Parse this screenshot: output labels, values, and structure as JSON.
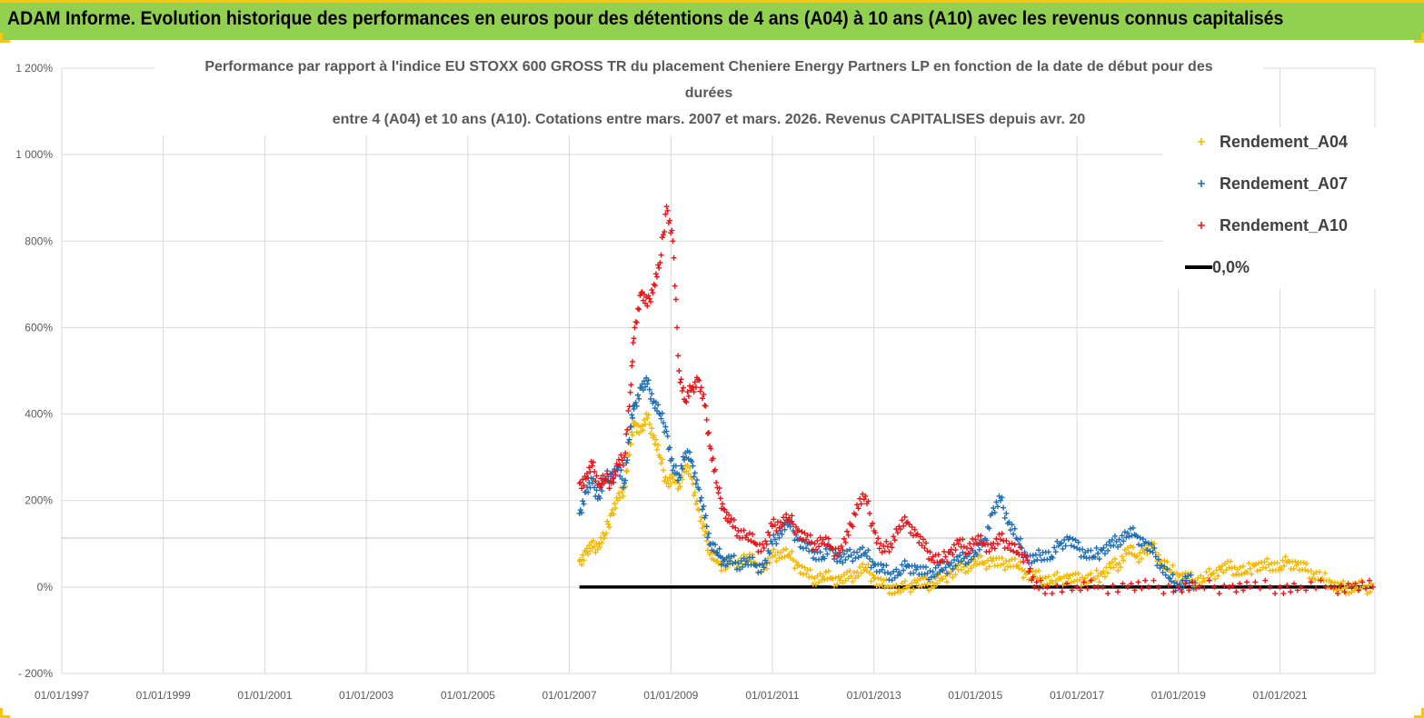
{
  "banner": {
    "title": "ADAM Informe. Evolution historique des performances en euros pour des détentions de 4 ans (A04) à 10 ans (A10) avec les revenus connus capitalisés"
  },
  "colors": {
    "banner_bg": "#92d050",
    "banner_border": "#f5c518",
    "A04": "#f5b800",
    "A07": "#1f6fb4",
    "A10": "#e8161b",
    "zero_line": "#000000",
    "grid": "#d9d9d9"
  },
  "chart_data": {
    "type": "scatter",
    "title_lines": [
      "Performance par rapport à l'indice EU STOXX 600 GROSS TR  du placement Cheniere Energy Partners LP en fonction de la date de début pour des",
      "durées",
      "entre 4 (A04) et 10 ans (A10).  Cotations entre mars. 2007 et mars. 2026. Revenus CAPITALISES depuis avr. 20"
    ],
    "x_tick_labels": [
      "01/01/1997",
      "01/01/1999",
      "01/01/2001",
      "01/01/2003",
      "01/01/2005",
      "01/01/2007",
      "01/01/2009",
      "01/01/2011",
      "01/01/2013",
      "01/01/2015",
      "01/01/2017",
      "01/01/2019",
      "01/01/2021"
    ],
    "xlim": [
      "1997-01-01",
      "2022-11-15"
    ],
    "y_tick_labels": [
      "- 200%",
      "0%",
      "200%",
      "400%",
      "600%",
      "800%",
      "1 000%",
      "1 200%"
    ],
    "ylim": [
      -200,
      1200
    ],
    "grid": true,
    "legend_position": "top-right",
    "legend": [
      "Rendement_A04",
      "Rendement_A07",
      "Rendement_A10",
      "0,0%"
    ],
    "series": [
      {
        "name": "Rendement_A04",
        "points": [
          [
            "2007-03-15",
            60
          ],
          [
            "2007-05-01",
            80
          ],
          [
            "2007-06-15",
            90
          ],
          [
            "2007-08-01",
            100
          ],
          [
            "2007-09-15",
            120
          ],
          [
            "2007-11-01",
            170
          ],
          [
            "2007-12-15",
            200
          ],
          [
            "2008-02-01",
            230
          ],
          [
            "2008-03-15",
            330
          ],
          [
            "2008-04-15",
            380
          ],
          [
            "2008-06-01",
            360
          ],
          [
            "2008-07-15",
            390
          ],
          [
            "2008-09-01",
            350
          ],
          [
            "2008-10-15",
            300
          ],
          [
            "2008-12-01",
            240
          ],
          [
            "2009-01-15",
            250
          ],
          [
            "2009-03-01",
            240
          ],
          [
            "2009-04-15",
            280
          ],
          [
            "2009-06-01",
            250
          ],
          [
            "2009-07-15",
            180
          ],
          [
            "2009-09-01",
            120
          ],
          [
            "2009-10-15",
            80
          ],
          [
            "2009-12-01",
            60
          ],
          [
            "2010-01-15",
            50
          ],
          [
            "2010-03-01",
            55
          ],
          [
            "2010-05-01",
            60
          ],
          [
            "2010-07-01",
            70
          ],
          [
            "2010-09-01",
            55
          ],
          [
            "2010-11-01",
            40
          ],
          [
            "2011-01-01",
            70
          ],
          [
            "2011-03-01",
            80
          ],
          [
            "2011-05-01",
            75
          ],
          [
            "2011-07-01",
            50
          ],
          [
            "2011-09-01",
            30
          ],
          [
            "2011-11-01",
            20
          ],
          [
            "2012-01-01",
            25
          ],
          [
            "2012-03-01",
            20
          ],
          [
            "2012-05-01",
            15
          ],
          [
            "2012-07-01",
            20
          ],
          [
            "2012-09-01",
            35
          ],
          [
            "2012-11-01",
            45
          ],
          [
            "2013-01-01",
            20
          ],
          [
            "2013-03-01",
            5
          ],
          [
            "2013-05-01",
            0
          ],
          [
            "2013-07-01",
            -5
          ],
          [
            "2013-09-01",
            0
          ],
          [
            "2013-11-01",
            10
          ],
          [
            "2014-01-01",
            5
          ],
          [
            "2014-03-01",
            10
          ],
          [
            "2014-05-01",
            20
          ],
          [
            "2014-07-01",
            30
          ],
          [
            "2014-09-01",
            40
          ],
          [
            "2014-11-01",
            50
          ],
          [
            "2015-01-01",
            60
          ],
          [
            "2015-03-01",
            55
          ],
          [
            "2015-05-01",
            60
          ],
          [
            "2015-07-01",
            50
          ],
          [
            "2015-09-01",
            60
          ],
          [
            "2015-11-01",
            50
          ],
          [
            "2016-01-01",
            30
          ],
          [
            "2016-03-01",
            25
          ],
          [
            "2016-05-01",
            20
          ],
          [
            "2016-07-01",
            15
          ],
          [
            "2016-09-01",
            20
          ],
          [
            "2016-11-01",
            20
          ],
          [
            "2017-01-01",
            15
          ],
          [
            "2017-03-01",
            20
          ],
          [
            "2017-05-01",
            20
          ],
          [
            "2017-07-01",
            30
          ],
          [
            "2017-09-01",
            45
          ],
          [
            "2017-11-01",
            55
          ],
          [
            "2018-01-01",
            90
          ],
          [
            "2018-03-01",
            70
          ],
          [
            "2018-05-01",
            80
          ],
          [
            "2018-07-01",
            90
          ],
          [
            "2018-09-01",
            60
          ],
          [
            "2018-11-01",
            40
          ],
          [
            "2019-01-01",
            25
          ],
          [
            "2019-03-01",
            20
          ],
          [
            "2019-05-01",
            15
          ],
          [
            "2019-07-01",
            20
          ],
          [
            "2019-09-01",
            30
          ],
          [
            "2019-11-01",
            40
          ],
          [
            "2020-01-01",
            45
          ],
          [
            "2020-03-01",
            40
          ],
          [
            "2020-05-01",
            35
          ],
          [
            "2020-07-01",
            50
          ],
          [
            "2020-09-01",
            45
          ],
          [
            "2020-11-01",
            55
          ],
          [
            "2021-01-01",
            45
          ],
          [
            "2021-03-01",
            60
          ],
          [
            "2021-05-01",
            50
          ],
          [
            "2021-07-01",
            40
          ],
          [
            "2021-09-01",
            30
          ],
          [
            "2021-11-01",
            20
          ],
          [
            "2022-01-01",
            10
          ],
          [
            "2022-03-01",
            -5
          ],
          [
            "2022-05-01",
            0
          ],
          [
            "2022-07-01",
            0
          ],
          [
            "2022-09-01",
            0
          ],
          [
            "2022-11-01",
            0
          ]
        ]
      },
      {
        "name": "Rendement_A07",
        "points": [
          [
            "2007-03-15",
            170
          ],
          [
            "2007-05-01",
            220
          ],
          [
            "2007-06-15",
            240
          ],
          [
            "2007-08-01",
            210
          ],
          [
            "2007-09-15",
            250
          ],
          [
            "2007-11-01",
            260
          ],
          [
            "2007-12-15",
            270
          ],
          [
            "2008-02-01",
            240
          ],
          [
            "2008-03-15",
            370
          ],
          [
            "2008-04-15",
            420
          ],
          [
            "2008-06-01",
            460
          ],
          [
            "2008-07-15",
            470
          ],
          [
            "2008-09-01",
            430
          ],
          [
            "2008-10-15",
            400
          ],
          [
            "2008-12-01",
            360
          ],
          [
            "2009-01-15",
            270
          ],
          [
            "2009-03-01",
            260
          ],
          [
            "2009-04-15",
            310
          ],
          [
            "2009-06-01",
            290
          ],
          [
            "2009-07-15",
            230
          ],
          [
            "2009-09-01",
            160
          ],
          [
            "2009-10-15",
            100
          ],
          [
            "2009-12-01",
            80
          ],
          [
            "2010-01-15",
            60
          ],
          [
            "2010-03-01",
            60
          ],
          [
            "2010-05-01",
            55
          ],
          [
            "2010-07-01",
            60
          ],
          [
            "2010-09-01",
            50
          ],
          [
            "2010-11-01",
            45
          ],
          [
            "2011-01-01",
            100
          ],
          [
            "2011-03-01",
            130
          ],
          [
            "2011-05-01",
            150
          ],
          [
            "2011-07-01",
            110
          ],
          [
            "2011-09-01",
            90
          ],
          [
            "2011-11-01",
            80
          ],
          [
            "2012-01-01",
            70
          ],
          [
            "2012-03-01",
            90
          ],
          [
            "2012-05-01",
            60
          ],
          [
            "2012-07-01",
            70
          ],
          [
            "2012-09-01",
            80
          ],
          [
            "2012-11-01",
            80
          ],
          [
            "2013-01-01",
            50
          ],
          [
            "2013-03-01",
            40
          ],
          [
            "2013-05-01",
            30
          ],
          [
            "2013-07-01",
            35
          ],
          [
            "2013-09-01",
            50
          ],
          [
            "2013-11-01",
            40
          ],
          [
            "2014-01-01",
            30
          ],
          [
            "2014-03-01",
            35
          ],
          [
            "2014-05-01",
            40
          ],
          [
            "2014-07-01",
            50
          ],
          [
            "2014-09-01",
            60
          ],
          [
            "2014-11-01",
            70
          ],
          [
            "2015-01-01",
            80
          ],
          [
            "2015-03-01",
            100
          ],
          [
            "2015-05-01",
            170
          ],
          [
            "2015-07-01",
            200
          ],
          [
            "2015-09-01",
            150
          ],
          [
            "2015-11-01",
            110
          ],
          [
            "2016-01-01",
            70
          ],
          [
            "2016-03-01",
            60
          ],
          [
            "2016-05-01",
            80
          ],
          [
            "2016-07-01",
            70
          ],
          [
            "2016-09-01",
            100
          ],
          [
            "2016-11-01",
            110
          ],
          [
            "2017-01-01",
            90
          ],
          [
            "2017-03-01",
            80
          ],
          [
            "2017-05-01",
            70
          ],
          [
            "2017-07-01",
            85
          ],
          [
            "2017-09-01",
            95
          ],
          [
            "2017-11-01",
            110
          ],
          [
            "2018-01-01",
            125
          ],
          [
            "2018-03-01",
            120
          ],
          [
            "2018-05-01",
            100
          ],
          [
            "2018-07-01",
            80
          ],
          [
            "2018-09-01",
            50
          ],
          [
            "2018-11-01",
            20
          ],
          [
            "2019-01-01",
            0
          ],
          [
            "2019-03-01",
            15
          ],
          [
            "2019-05-01",
            10
          ]
        ]
      },
      {
        "name": "Rendement_A10",
        "points": [
          [
            "2007-03-15",
            240
          ],
          [
            "2007-05-01",
            250
          ],
          [
            "2007-06-15",
            280
          ],
          [
            "2007-08-01",
            240
          ],
          [
            "2007-09-15",
            250
          ],
          [
            "2007-11-01",
            240
          ],
          [
            "2007-12-15",
            280
          ],
          [
            "2008-02-01",
            300
          ],
          [
            "2008-03-15",
            450
          ],
          [
            "2008-04-15",
            600
          ],
          [
            "2008-06-01",
            680
          ],
          [
            "2008-07-15",
            650
          ],
          [
            "2008-09-01",
            700
          ],
          [
            "2008-10-15",
            750
          ],
          [
            "2008-12-01",
            880
          ],
          [
            "2009-01-15",
            800
          ],
          [
            "2009-03-01",
            500
          ],
          [
            "2009-04-15",
            430
          ],
          [
            "2009-06-01",
            460
          ],
          [
            "2009-07-15",
            480
          ],
          [
            "2009-09-01",
            420
          ],
          [
            "2009-10-15",
            320
          ],
          [
            "2009-12-01",
            230
          ],
          [
            "2010-01-15",
            180
          ],
          [
            "2010-03-01",
            150
          ],
          [
            "2010-05-01",
            130
          ],
          [
            "2010-07-01",
            120
          ],
          [
            "2010-09-01",
            100
          ],
          [
            "2010-11-01",
            90
          ],
          [
            "2011-01-01",
            140
          ],
          [
            "2011-03-01",
            150
          ],
          [
            "2011-05-01",
            160
          ],
          [
            "2011-07-01",
            130
          ],
          [
            "2011-09-01",
            110
          ],
          [
            "2011-11-01",
            100
          ],
          [
            "2012-01-01",
            110
          ],
          [
            "2012-03-01",
            90
          ],
          [
            "2012-05-01",
            80
          ],
          [
            "2012-07-01",
            120
          ],
          [
            "2012-09-01",
            190
          ],
          [
            "2012-11-01",
            210
          ],
          [
            "2013-01-01",
            130
          ],
          [
            "2013-03-01",
            80
          ],
          [
            "2013-05-01",
            100
          ],
          [
            "2013-07-01",
            140
          ],
          [
            "2013-09-01",
            150
          ],
          [
            "2013-11-01",
            120
          ],
          [
            "2014-01-01",
            90
          ],
          [
            "2014-03-01",
            70
          ],
          [
            "2014-05-01",
            60
          ],
          [
            "2014-07-01",
            80
          ],
          [
            "2014-09-01",
            100
          ],
          [
            "2014-11-01",
            90
          ],
          [
            "2015-01-01",
            110
          ],
          [
            "2015-03-01",
            100
          ],
          [
            "2015-05-01",
            90
          ],
          [
            "2015-07-01",
            110
          ],
          [
            "2015-09-01",
            100
          ],
          [
            "2015-11-01",
            80
          ],
          [
            "2016-01-01",
            70
          ],
          [
            "2016-03-01",
            0
          ],
          [
            "2016-06-01",
            0
          ],
          [
            "2017-01-01",
            0
          ],
          [
            "2017-06-01",
            0
          ],
          [
            "2018-01-01",
            0
          ],
          [
            "2018-06-01",
            0
          ],
          [
            "2019-01-01",
            0
          ],
          [
            "2019-06-01",
            0
          ],
          [
            "2020-01-01",
            0
          ],
          [
            "2020-06-01",
            0
          ],
          [
            "2021-01-01",
            0
          ],
          [
            "2021-06-01",
            0
          ],
          [
            "2022-01-01",
            0
          ],
          [
            "2022-06-01",
            0
          ],
          [
            "2022-11-01",
            0
          ]
        ]
      },
      {
        "name": "0,0%",
        "type": "line",
        "points": [
          [
            "2007-03-15",
            0
          ],
          [
            "2022-11-01",
            0
          ]
        ]
      }
    ]
  }
}
